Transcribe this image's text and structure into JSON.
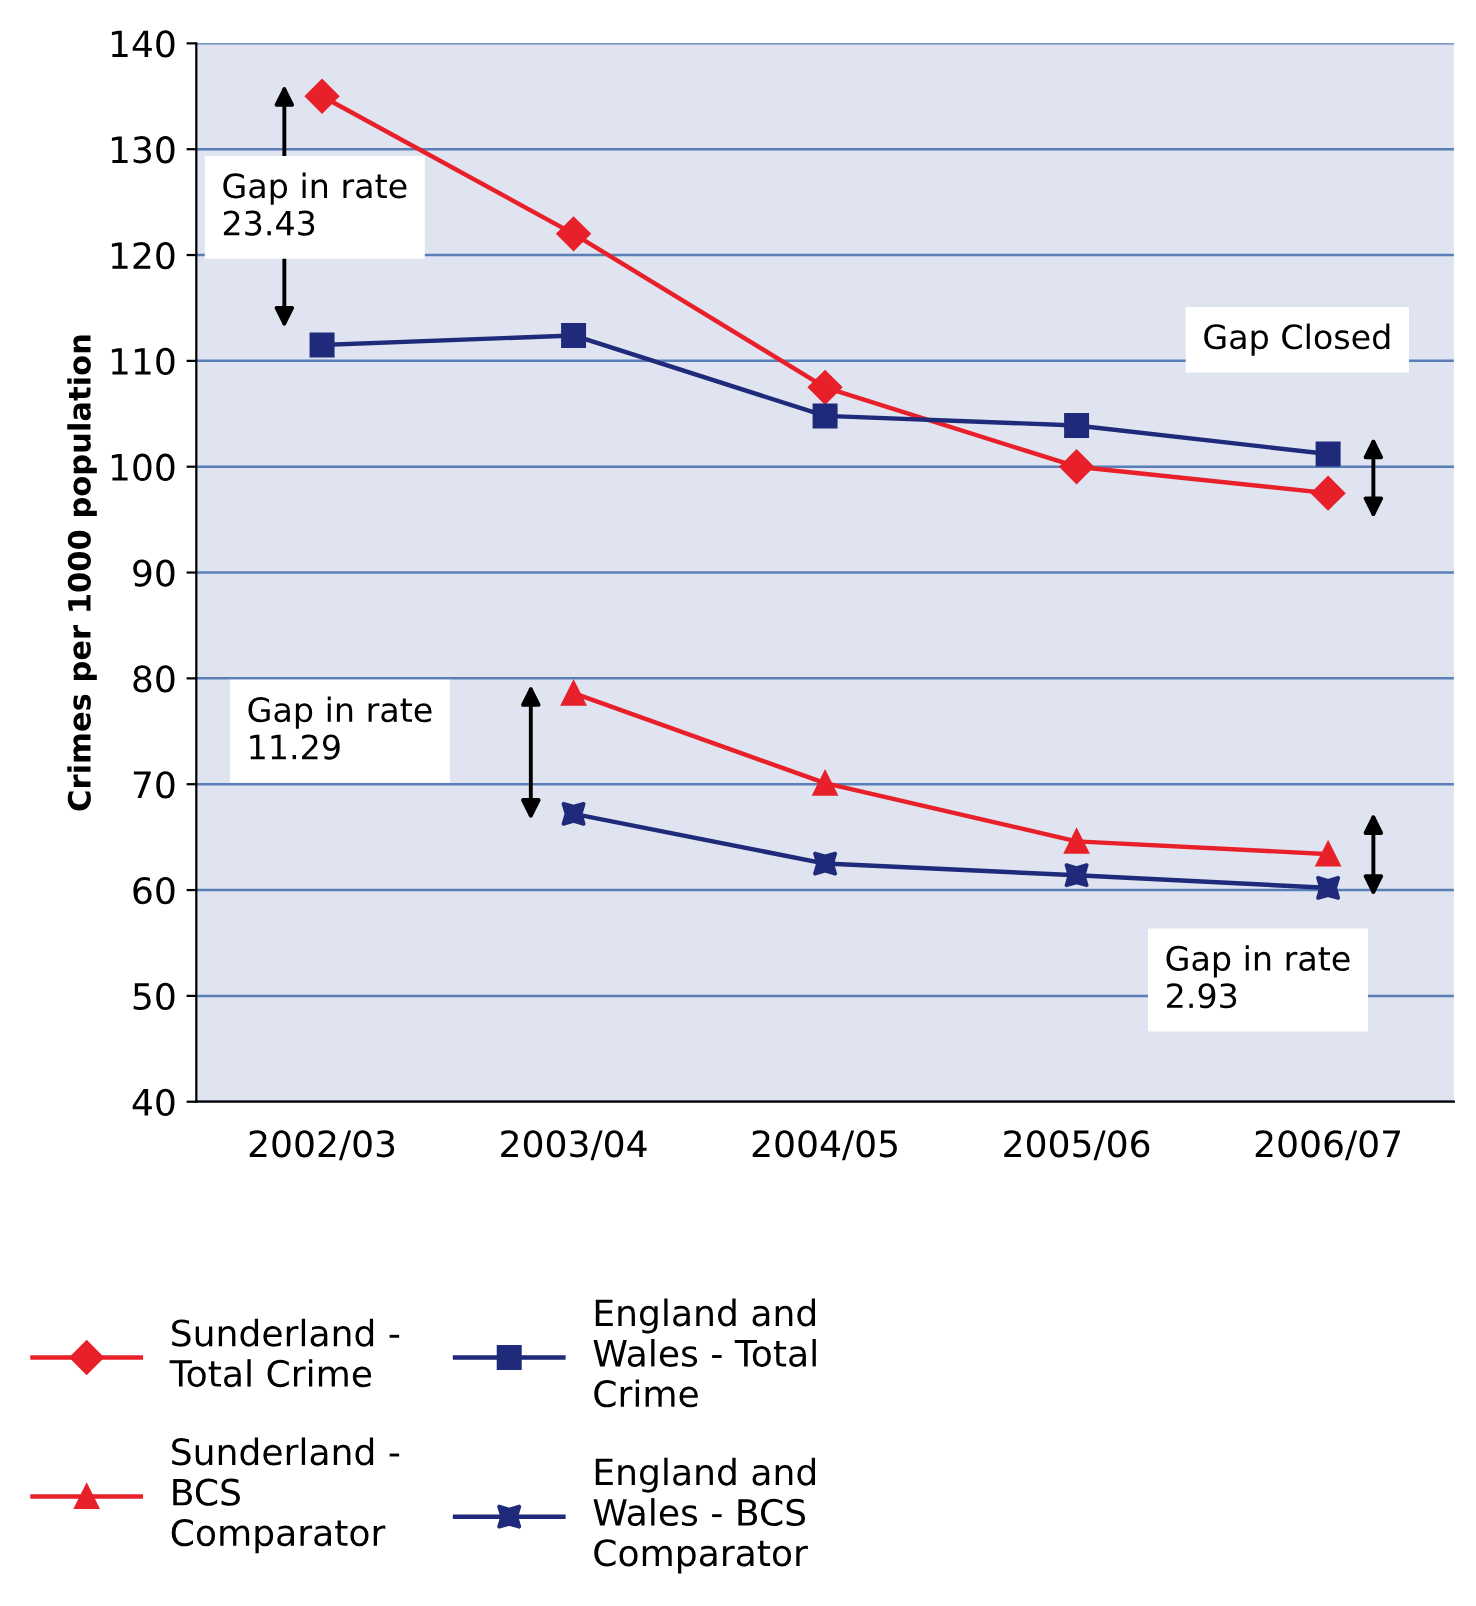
{
  "chart_data": {
    "type": "line",
    "ylabel": "Crimes per 1000 population",
    "categories": [
      "2002/03",
      "2003/04",
      "2004/05",
      "2005/06",
      "2006/07"
    ],
    "series": [
      {
        "name": "Sunderland -\nTotal Crime",
        "color": "#e8202a",
        "marker": "diamond",
        "values": [
          135,
          122,
          107.5,
          100,
          97.5
        ]
      },
      {
        "name": "England and\nWales - Total\nCrime",
        "color": "#1f2a7a",
        "marker": "square",
        "values": [
          111.5,
          112.4,
          104.8,
          103.9,
          101.2
        ]
      },
      {
        "name": "Sunderland -\nBCS\nComparator",
        "color": "#e8202a",
        "marker": "triangle",
        "values": [
          null,
          78.6,
          70.1,
          64.6,
          63.4
        ]
      },
      {
        "name": "England and\nWales - BCS\nComparator",
        "color": "#1f2a7a",
        "marker": "star",
        "values": [
          null,
          67.2,
          62.5,
          61.4,
          60.2
        ]
      }
    ],
    "annotations": [
      "Gap in rate\n23.43",
      "Gap in rate\n11.29",
      "Gap in rate\n2.93",
      "Gap Closed"
    ],
    "ylim": [
      40,
      140
    ],
    "yticks": [
      40,
      50,
      60,
      70,
      80,
      90,
      100,
      110,
      120,
      130,
      140
    ],
    "grid": "y",
    "legend": "bottom",
    "line_style": "solid"
  }
}
